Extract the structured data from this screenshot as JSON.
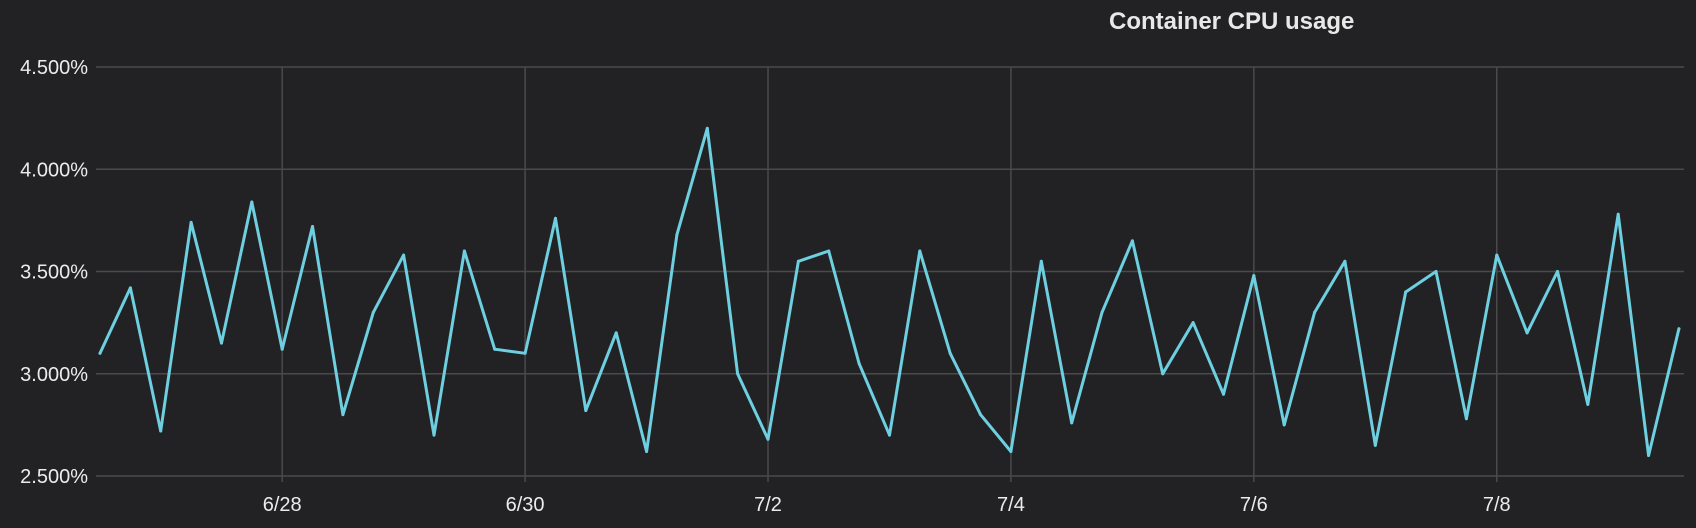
{
  "chart_data": {
    "type": "line",
    "title": "Container CPU usage",
    "xlabel": "",
    "ylabel": "",
    "ylim": [
      2.5,
      4.5
    ],
    "y_ticks": [
      {
        "value": 4.5,
        "label": "4.500%"
      },
      {
        "value": 4.0,
        "label": "4.000%"
      },
      {
        "value": 3.5,
        "label": "3.500%"
      },
      {
        "value": 3.0,
        "label": "3.000%"
      },
      {
        "value": 2.5,
        "label": "2.500%"
      }
    ],
    "x_start": "2024-06-26T12:00",
    "x_end": "2024-07-09T13:00",
    "x_ticks": [
      {
        "value": "2024-06-28",
        "label": "6/28"
      },
      {
        "value": "2024-06-30",
        "label": "6/30"
      },
      {
        "value": "2024-07-02",
        "label": "7/2"
      },
      {
        "value": "2024-07-04",
        "label": "7/4"
      },
      {
        "value": "2024-07-06",
        "label": "7/6"
      },
      {
        "value": "2024-07-08",
        "label": "7/8"
      }
    ],
    "grid": true,
    "legend": "none",
    "series": [
      {
        "color": "#6dcfe0",
        "x": [
          "2024-06-26T12:00",
          "2024-06-26T18:00",
          "2024-06-27T00:00",
          "2024-06-27T06:00",
          "2024-06-27T12:00",
          "2024-06-27T18:00",
          "2024-06-28T00:00",
          "2024-06-28T06:00",
          "2024-06-28T12:00",
          "2024-06-28T18:00",
          "2024-06-29T00:00",
          "2024-06-29T06:00",
          "2024-06-29T12:00",
          "2024-06-29T18:00",
          "2024-06-30T00:00",
          "2024-06-30T06:00",
          "2024-06-30T12:00",
          "2024-06-30T18:00",
          "2024-07-01T00:00",
          "2024-07-01T06:00",
          "2024-07-01T12:00",
          "2024-07-01T18:00",
          "2024-07-02T00:00",
          "2024-07-02T06:00",
          "2024-07-02T12:00",
          "2024-07-02T18:00",
          "2024-07-03T00:00",
          "2024-07-03T06:00",
          "2024-07-03T12:00",
          "2024-07-03T18:00",
          "2024-07-04T00:00",
          "2024-07-04T06:00",
          "2024-07-04T12:00",
          "2024-07-04T18:00",
          "2024-07-05T00:00",
          "2024-07-05T06:00",
          "2024-07-05T12:00",
          "2024-07-05T18:00",
          "2024-07-06T00:00",
          "2024-07-06T06:00",
          "2024-07-06T12:00",
          "2024-07-06T18:00",
          "2024-07-07T00:00",
          "2024-07-07T06:00",
          "2024-07-07T12:00",
          "2024-07-07T18:00",
          "2024-07-08T00:00",
          "2024-07-08T06:00",
          "2024-07-08T12:00",
          "2024-07-08T18:00",
          "2024-07-09T00:00",
          "2024-07-09T06:00",
          "2024-07-09T12:00"
        ],
        "y": [
          3.1,
          3.42,
          2.72,
          3.74,
          3.15,
          3.84,
          3.12,
          3.72,
          2.8,
          3.3,
          3.58,
          2.7,
          3.6,
          3.12,
          3.1,
          3.76,
          2.82,
          3.2,
          2.62,
          3.68,
          4.2,
          3.0,
          2.68,
          3.55,
          3.6,
          3.05,
          2.7,
          3.6,
          3.1,
          2.8,
          2.62,
          3.55,
          2.76,
          3.3,
          3.65,
          3.0,
          3.25,
          2.9,
          3.48,
          2.75,
          3.3,
          3.55,
          2.65,
          3.4,
          3.5,
          2.78,
          3.58,
          3.2,
          3.5,
          2.85,
          3.78,
          2.6,
          3.22
        ]
      }
    ]
  }
}
